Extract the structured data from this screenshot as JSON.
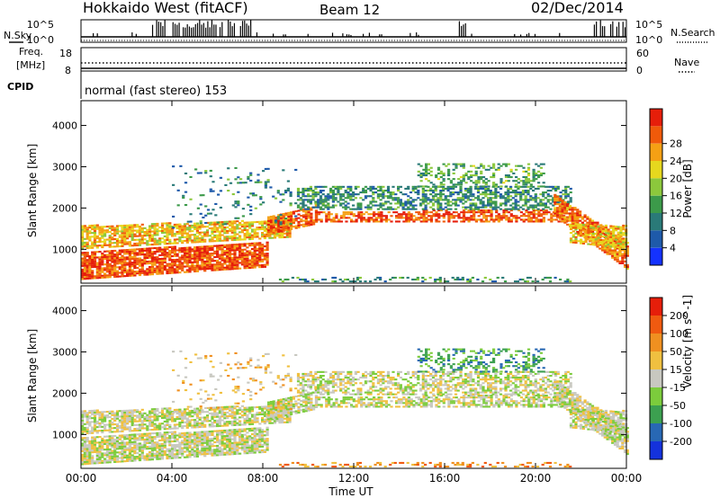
{
  "header": {
    "title": "Hokkaido West (fitACF)",
    "beam": "Beam 12",
    "date": "02/Dec/2014"
  },
  "top_panels": {
    "nsky_label": "N.Sky",
    "nsearch_label": "N.Search",
    "noise_left_ticks": [
      "10^5",
      "10^0"
    ],
    "noise_right_ticks": [
      "10^5",
      "10^0"
    ],
    "freq_label_line1": "Freq.",
    "freq_label_line2": "[MHz]",
    "freq_ticks": [
      "18",
      "8"
    ],
    "nave_ticks": [
      "60",
      "0"
    ],
    "nave_label": "Nave",
    "cpid_label": "CPID",
    "cpid_text": "normal (fast stereo) 153"
  },
  "chart_data": [
    {
      "type": "heatmap",
      "name": "power",
      "ylabel": "Slant Range [km]",
      "ylim": [
        180,
        4600
      ],
      "yticks": [
        "1000",
        "2000",
        "3000",
        "4000"
      ],
      "xticks": [
        "00:00",
        "04:00",
        "08:00",
        "12:00",
        "16:00",
        "20:00",
        "00:00"
      ],
      "xlim_hours": [
        0,
        24
      ],
      "colorbar": {
        "label": "Power [dB]",
        "ticks": [
          "4",
          "8",
          "12",
          "16",
          "20",
          "24",
          "28"
        ],
        "range": [
          0,
          30
        ],
        "colors": [
          "#1432ff",
          "#1e5aaa",
          "#2a7a78",
          "#3c9a4a",
          "#8cc83c",
          "#e6d81e",
          "#f5a014",
          "#f05a0a",
          "#e61e0a"
        ]
      }
    },
    {
      "type": "heatmap",
      "name": "velocity",
      "ylabel": "Slant Range [km]",
      "ylim": [
        180,
        4600
      ],
      "yticks": [
        "1000",
        "2000",
        "3000",
        "4000"
      ],
      "xticks": [
        "00:00",
        "04:00",
        "08:00",
        "12:00",
        "16:00",
        "20:00",
        "00:00"
      ],
      "xlim_hours": [
        0,
        24
      ],
      "xlabel": "Time UT",
      "colorbar": {
        "label": "Velocity [m s^-1]",
        "ticks": [
          "200",
          "100",
          "50",
          "15",
          "-15",
          "-50",
          "-100",
          "-200"
        ],
        "colors": [
          "#1432dc",
          "#2868b4",
          "#3ca050",
          "#7ccc3c",
          "#c8c8c0",
          "#f0c040",
          "#f09020",
          "#f05a10",
          "#e61e0a"
        ]
      }
    }
  ]
}
